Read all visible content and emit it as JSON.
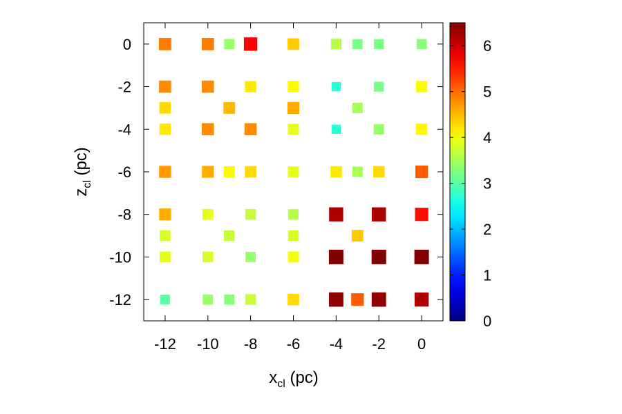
{
  "chart_data": {
    "type": "scatter",
    "xlabel": {
      "main": "x",
      "sub": "cl",
      "unit": " (pc)"
    },
    "ylabel": {
      "main": "z",
      "sub": "cl",
      "unit": " (pc)"
    },
    "xlim": [
      -13,
      1
    ],
    "ylim": [
      -13,
      1
    ],
    "xticks": [
      -12,
      -10,
      -8,
      -6,
      -4,
      -2,
      0
    ],
    "yticks": [
      0,
      -2,
      -4,
      -6,
      -8,
      -10,
      -12
    ],
    "xtick_labels": [
      "-12",
      "-10",
      "-8",
      "-6",
      "-4",
      "-2",
      "0"
    ],
    "ytick_labels": [
      "0",
      "-2",
      "-4",
      "-6",
      "-8",
      "-10",
      "-12"
    ],
    "colorbar": {
      "range": [
        0,
        6.5
      ],
      "ticks": [
        0,
        1,
        2,
        3,
        4,
        5,
        6
      ],
      "tick_labels": [
        "0",
        "1",
        "2",
        "3",
        "4",
        "5",
        "6"
      ],
      "colormap": "jet"
    },
    "grid": false,
    "marker": "square",
    "marker_size_scales_with_value": true,
    "points": [
      {
        "x": -12,
        "z": 0,
        "value": 4.9
      },
      {
        "x": -10,
        "z": 0,
        "value": 4.9
      },
      {
        "x": -9,
        "z": 0,
        "value": 3.4
      },
      {
        "x": -8,
        "z": 0,
        "value": 5.7
      },
      {
        "x": -6,
        "z": 0,
        "value": 4.4
      },
      {
        "x": -4,
        "z": 0,
        "value": 3.6
      },
      {
        "x": -3,
        "z": 0,
        "value": 3.2
      },
      {
        "x": -2,
        "z": 0,
        "value": 3.2
      },
      {
        "x": 0,
        "z": 0,
        "value": 3.3
      },
      {
        "x": -12,
        "z": -2,
        "value": 4.8
      },
      {
        "x": -10,
        "z": -2,
        "value": 4.8
      },
      {
        "x": -8,
        "z": -2,
        "value": 4.2
      },
      {
        "x": -6,
        "z": -2,
        "value": 4.1
      },
      {
        "x": -4,
        "z": -2,
        "value": 2.7
      },
      {
        "x": -2,
        "z": -2,
        "value": 3.2
      },
      {
        "x": 0,
        "z": -2,
        "value": 4.1
      },
      {
        "x": -12,
        "z": -3,
        "value": 4.3
      },
      {
        "x": -9,
        "z": -3,
        "value": 4.5
      },
      {
        "x": -6,
        "z": -3,
        "value": 4.6
      },
      {
        "x": -3,
        "z": -3,
        "value": 3.5
      },
      {
        "x": -12,
        "z": -4,
        "value": 4.2
      },
      {
        "x": -10,
        "z": -4,
        "value": 4.8
      },
      {
        "x": -8,
        "z": -4,
        "value": 4.8
      },
      {
        "x": -6,
        "z": -4,
        "value": 3.9
      },
      {
        "x": -4,
        "z": -4,
        "value": 2.7
      },
      {
        "x": -2,
        "z": -4,
        "value": 3.4
      },
      {
        "x": 0,
        "z": -4,
        "value": 4.1
      },
      {
        "x": -12,
        "z": -6,
        "value": 4.7
      },
      {
        "x": -10,
        "z": -6,
        "value": 4.6
      },
      {
        "x": -9,
        "z": -6,
        "value": 4.1
      },
      {
        "x": -8,
        "z": -6,
        "value": 4.3
      },
      {
        "x": -6,
        "z": -6,
        "value": 3.9
      },
      {
        "x": -4,
        "z": -6,
        "value": 4.2
      },
      {
        "x": -3,
        "z": -6,
        "value": 3.5
      },
      {
        "x": -2,
        "z": -6,
        "value": 4.3
      },
      {
        "x": 0,
        "z": -6,
        "value": 5.1
      },
      {
        "x": -12,
        "z": -8,
        "value": 4.6
      },
      {
        "x": -10,
        "z": -8,
        "value": 3.9
      },
      {
        "x": -8,
        "z": -8,
        "value": 3.7
      },
      {
        "x": -6,
        "z": -8,
        "value": 3.6
      },
      {
        "x": -4,
        "z": -8,
        "value": 6.2
      },
      {
        "x": -2,
        "z": -8,
        "value": 6.2
      },
      {
        "x": 0,
        "z": -8,
        "value": 5.6
      },
      {
        "x": -12,
        "z": -9,
        "value": 3.8
      },
      {
        "x": -9,
        "z": -9,
        "value": 3.7
      },
      {
        "x": -6,
        "z": -9,
        "value": 3.8
      },
      {
        "x": -3,
        "z": -9,
        "value": 4.4
      },
      {
        "x": -12,
        "z": -10,
        "value": 3.9
      },
      {
        "x": -10,
        "z": -10,
        "value": 3.8
      },
      {
        "x": -8,
        "z": -10,
        "value": 3.4
      },
      {
        "x": -6,
        "z": -10,
        "value": 4.0
      },
      {
        "x": -4,
        "z": -10,
        "value": 6.5
      },
      {
        "x": -2,
        "z": -10,
        "value": 6.5
      },
      {
        "x": 0,
        "z": -10,
        "value": 6.5
      },
      {
        "x": -12,
        "z": -12,
        "value": 3.0
      },
      {
        "x": -10,
        "z": -12,
        "value": 3.4
      },
      {
        "x": -9,
        "z": -12,
        "value": 3.3
      },
      {
        "x": -8,
        "z": -12,
        "value": 3.7
      },
      {
        "x": -6,
        "z": -12,
        "value": 4.3
      },
      {
        "x": -4,
        "z": -12,
        "value": 6.4
      },
      {
        "x": -3,
        "z": -12,
        "value": 5.1
      },
      {
        "x": -2,
        "z": -12,
        "value": 6.4
      },
      {
        "x": 0,
        "z": -12,
        "value": 6.2
      }
    ]
  }
}
